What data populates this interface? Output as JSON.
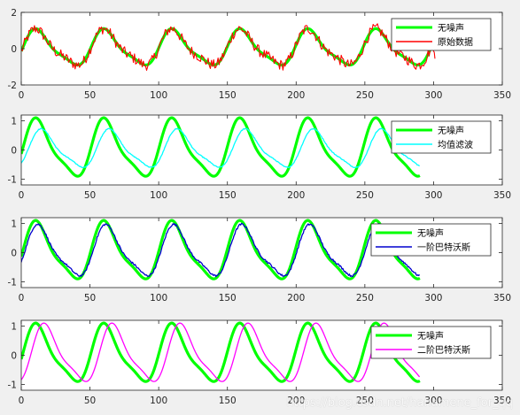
{
  "watermark": "https://blog.csdn.net/hanamene_for_qq",
  "colors": {
    "clean": "#00ff00",
    "raw": "#ff0000",
    "mean": "#00ffff",
    "butter1": "#0000cd",
    "butter2": "#ff00ff"
  },
  "chart_data": [
    {
      "type": "line",
      "xlim": [
        0,
        350
      ],
      "ylim": [
        -2,
        2
      ],
      "xticks": [
        "0",
        "50",
        "100",
        "150",
        "200",
        "250",
        "300",
        "350"
      ],
      "yticks": [
        "-2",
        "0",
        "2"
      ],
      "legend_position": "top-right",
      "signal": {
        "period": 49.5,
        "length": 300
      },
      "series": [
        {
          "name": "无噪声",
          "kind": "clean",
          "color": "#00ff00",
          "x_end": 300,
          "amplitude": 1.0
        },
        {
          "name": "原始数据",
          "kind": "raw",
          "color": "#ff0000",
          "x_end": 300,
          "amplitude": 1.0,
          "noise": 0.3
        }
      ]
    },
    {
      "type": "line",
      "xlim": [
        0,
        350
      ],
      "ylim": [
        -1.2,
        1.2
      ],
      "xticks": [
        "0",
        "50",
        "100",
        "150",
        "200",
        "250",
        "300",
        "350"
      ],
      "yticks": [
        "-1",
        "0",
        "1"
      ],
      "legend_position": "top-right",
      "signal": {
        "period": 49.5,
        "length": 300
      },
      "series": [
        {
          "name": "无噪声",
          "kind": "clean",
          "color": "#00ff00",
          "x_end": 290,
          "amplitude": 1.0
        },
        {
          "name": "均值滤波",
          "kind": "mean",
          "color": "#00ffff",
          "x_end": 290,
          "amplitude": 0.66,
          "lag": 4
        }
      ]
    },
    {
      "type": "line",
      "xlim": [
        0,
        350
      ],
      "ylim": [
        -1.2,
        1.2
      ],
      "xticks": [
        "0",
        "50",
        "100",
        "150",
        "200",
        "250",
        "300",
        "350"
      ],
      "yticks": [
        "-1",
        "0",
        "1"
      ],
      "legend_position": "top-right",
      "signal": {
        "period": 49.5,
        "length": 300
      },
      "series": [
        {
          "name": "无噪声",
          "kind": "clean",
          "color": "#00ff00",
          "x_end": 290,
          "amplitude": 1.0
        },
        {
          "name": "一阶巴特沃斯",
          "kind": "butter1",
          "color": "#0000cd",
          "x_end": 290,
          "amplitude": 0.88,
          "lag": 1.5
        }
      ]
    },
    {
      "type": "line",
      "xlim": [
        0,
        350
      ],
      "ylim": [
        -1.2,
        1.2
      ],
      "xticks": [
        "0",
        "50",
        "100",
        "150",
        "200",
        "250",
        "300",
        "350"
      ],
      "yticks": [
        "-1",
        "0",
        "1"
      ],
      "legend_position": "top-right",
      "signal": {
        "period": 49.5,
        "length": 300
      },
      "series": [
        {
          "name": "无噪声",
          "kind": "clean",
          "color": "#00ff00",
          "x_end": 290,
          "amplitude": 1.0
        },
        {
          "name": "二阶巴特沃斯",
          "kind": "butter2",
          "color": "#ff00ff",
          "x_end": 290,
          "amplitude": 1.0,
          "lag": 6
        }
      ]
    }
  ]
}
